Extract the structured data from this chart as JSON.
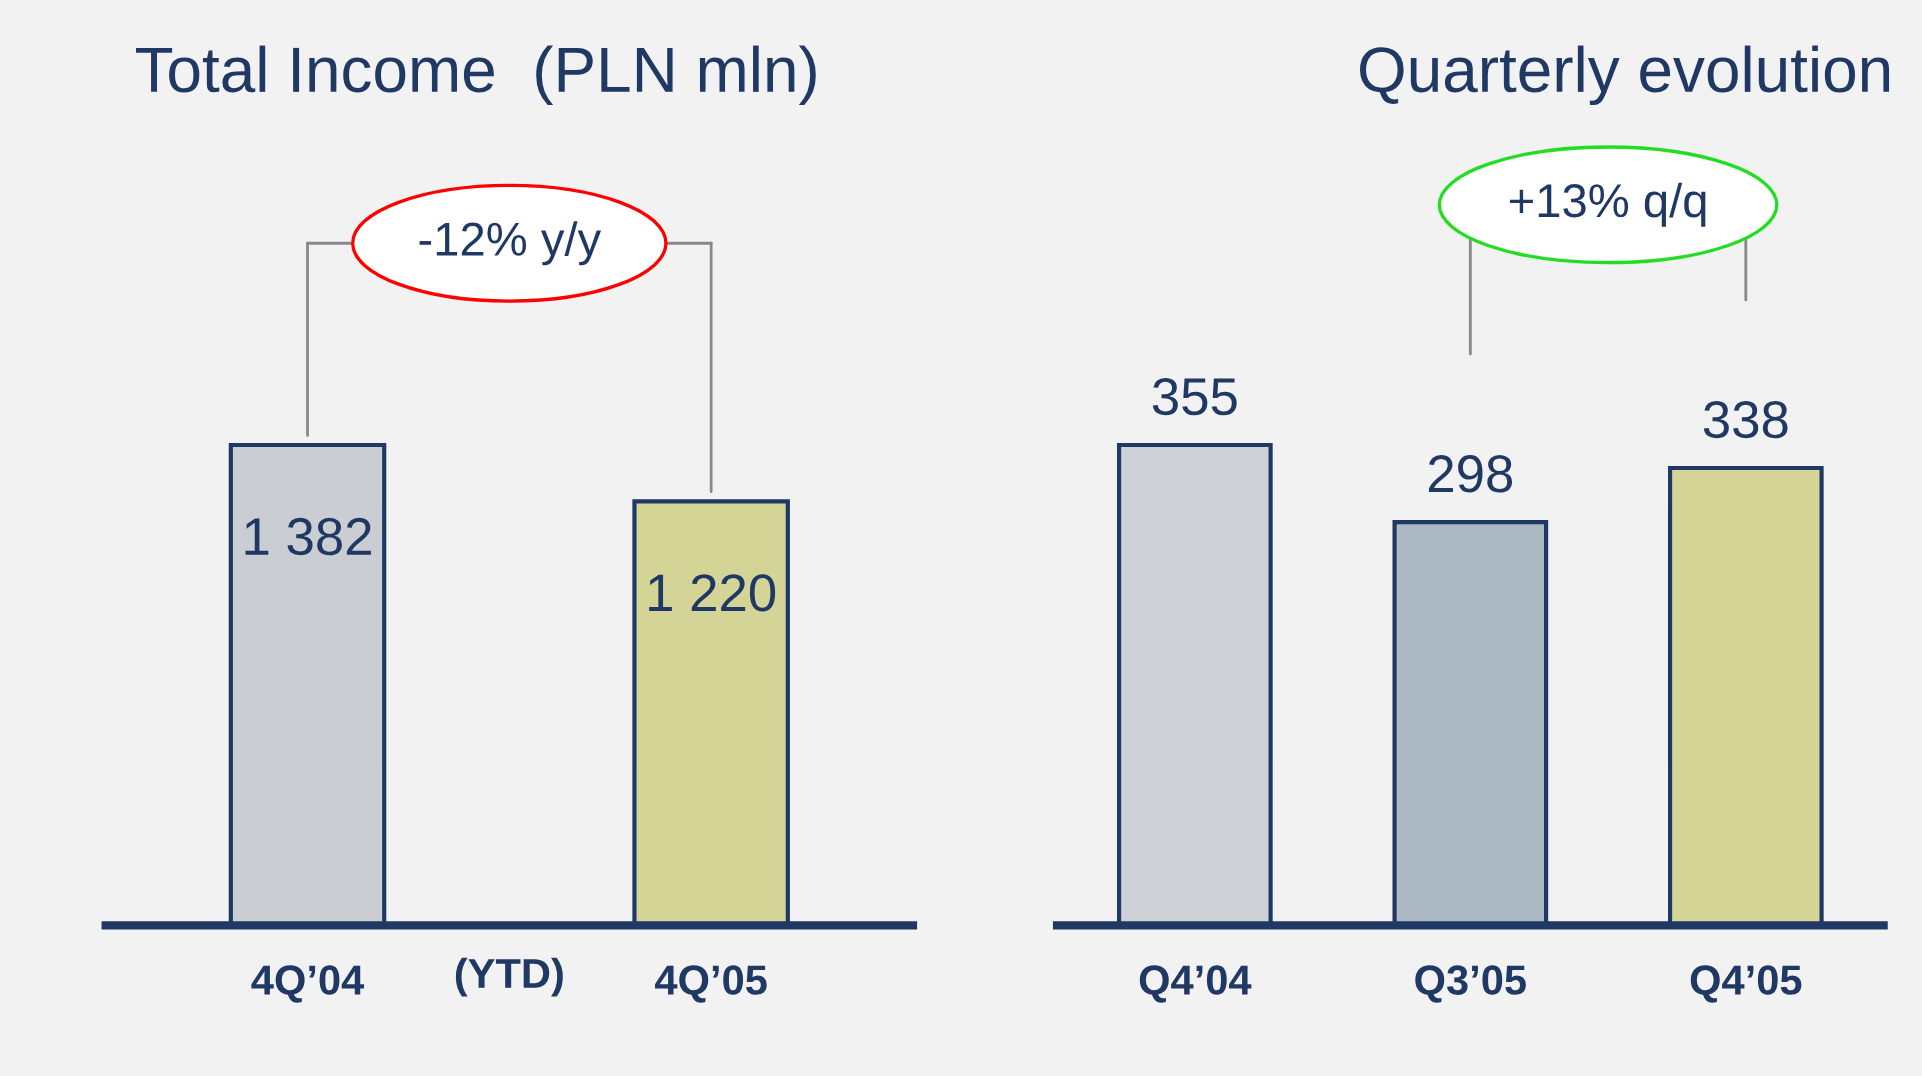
{
  "chart_data": [
    {
      "type": "bar",
      "title": "Total Income  (PLN mln)",
      "categories": [
        "4Q’04",
        "4Q’05"
      ],
      "values": [
        1382,
        1220
      ],
      "colors": [
        "#c9cdd3",
        "#dede8c"
      ],
      "value_labels": [
        "1 382",
        "1 220"
      ],
      "annotations": [
        "-12% y/y",
        "(YTD)"
      ]
    },
    {
      "type": "bar",
      "title": "Quarterly evolution",
      "categories": [
        "Q4’04",
        "Q3’05",
        "Q4’05"
      ],
      "values": [
        355,
        298,
        338
      ],
      "colors": [
        "#ccd0d6",
        "#a9b9c6",
        "#dede8c"
      ],
      "data_labels": true,
      "annotations": [
        "+13% q/q"
      ]
    }
  ]
}
